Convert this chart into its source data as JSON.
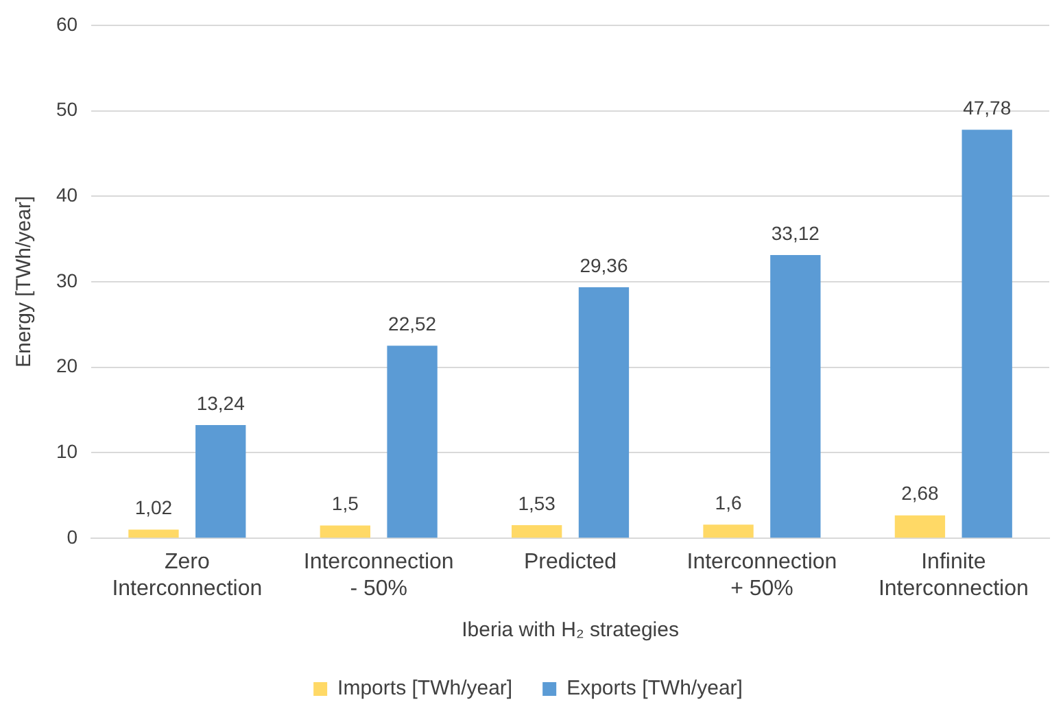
{
  "chart_data": {
    "type": "bar",
    "xlabel": "Iberia with H₂ strategies",
    "ylabel": "Energy [TWh/year]",
    "categories": [
      "Zero Interconnection",
      "Interconnection - 50%",
      "Predicted",
      "Interconnection + 50%",
      "Infinite Interconnection"
    ],
    "series": [
      {
        "name": "Imports [TWh/year]",
        "color": "#ffd966",
        "values": [
          1.02,
          1.5,
          1.53,
          1.6,
          2.68
        ],
        "value_labels": [
          "1,02",
          "1,5",
          "1,53",
          "1,6",
          "2,68"
        ]
      },
      {
        "name": "Exports [TWh/year]",
        "color": "#5b9bd5",
        "values": [
          13.24,
          22.52,
          29.36,
          33.12,
          47.78
        ],
        "value_labels": [
          "13,24",
          "22,52",
          "29,36",
          "33,12",
          "47,78"
        ]
      }
    ],
    "ylim": [
      0,
      60
    ],
    "yticks": [
      0,
      10,
      20,
      30,
      40,
      50,
      60
    ],
    "grid": "y",
    "legend": "bottom"
  }
}
